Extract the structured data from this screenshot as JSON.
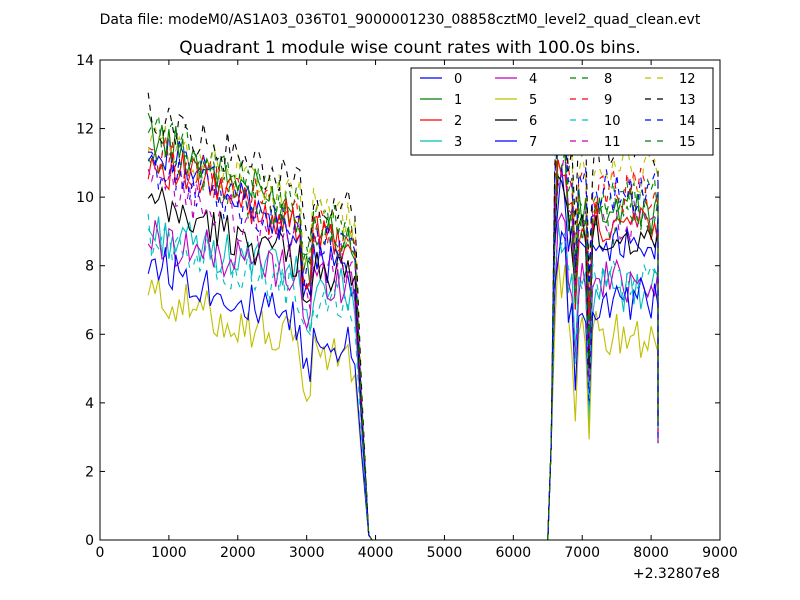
{
  "chart_data": {
    "type": "line",
    "suptitle": "Data file: modeM0/AS1A03_036T01_9000001230_08858cztM0_level2_quad_clean.evt",
    "title": "Quadrant 1 module wise count rates with 100.0s bins.",
    "xlabel": "",
    "ylabel": "",
    "x_offset_label": "+2.32807e8",
    "xlim": [
      0,
      9000
    ],
    "ylim": [
      0,
      14
    ],
    "xticks": [
      "0",
      "1000",
      "2000",
      "3000",
      "4000",
      "5000",
      "6000",
      "7000",
      "8000",
      "9000"
    ],
    "yticks": [
      "0",
      "2",
      "4",
      "6",
      "8",
      "10",
      "12",
      "14"
    ],
    "legend_position": "top-right",
    "series_names": [
      "0",
      "1",
      "2",
      "3",
      "4",
      "5",
      "6",
      "7",
      "8",
      "9",
      "10",
      "11",
      "12",
      "13",
      "14",
      "15"
    ],
    "colors": [
      "#0000ff",
      "#008000",
      "#ff0000",
      "#00bfbf",
      "#bf00bf",
      "#bfbf00",
      "#000000",
      "#0000ff",
      "#008000",
      "#ff0000",
      "#00bfbf",
      "#bf00bf",
      "#bfbf00",
      "#000000",
      "#0000ff",
      "#008000"
    ],
    "dashed_from_index": 8,
    "segments": [
      {
        "from": 700,
        "to": 3700
      },
      {
        "from": 6600,
        "to": 8100
      }
    ],
    "baseline_levels": {
      "segment1_start": [
        11.7,
        11.9,
        11.1,
        9.0,
        8.8,
        7.2,
        9.8,
        8.2,
        12.1,
        11.4,
        8.9,
        10.4,
        11.7,
        12.4,
        10.9,
        11.2
      ],
      "segment1_end": [
        7.6,
        8.6,
        8.4,
        7.2,
        7.4,
        5.2,
        7.6,
        5.5,
        8.8,
        8.6,
        6.5,
        8.0,
        9.2,
        9.5,
        8.4,
        8.6
      ],
      "segment2_level": [
        8.8,
        9.6,
        9.3,
        7.2,
        7.6,
        6.0,
        8.9,
        7.0,
        10.0,
        10.2,
        7.5,
        9.2,
        10.8,
        11.3,
        10.2,
        9.3
      ]
    }
  }
}
